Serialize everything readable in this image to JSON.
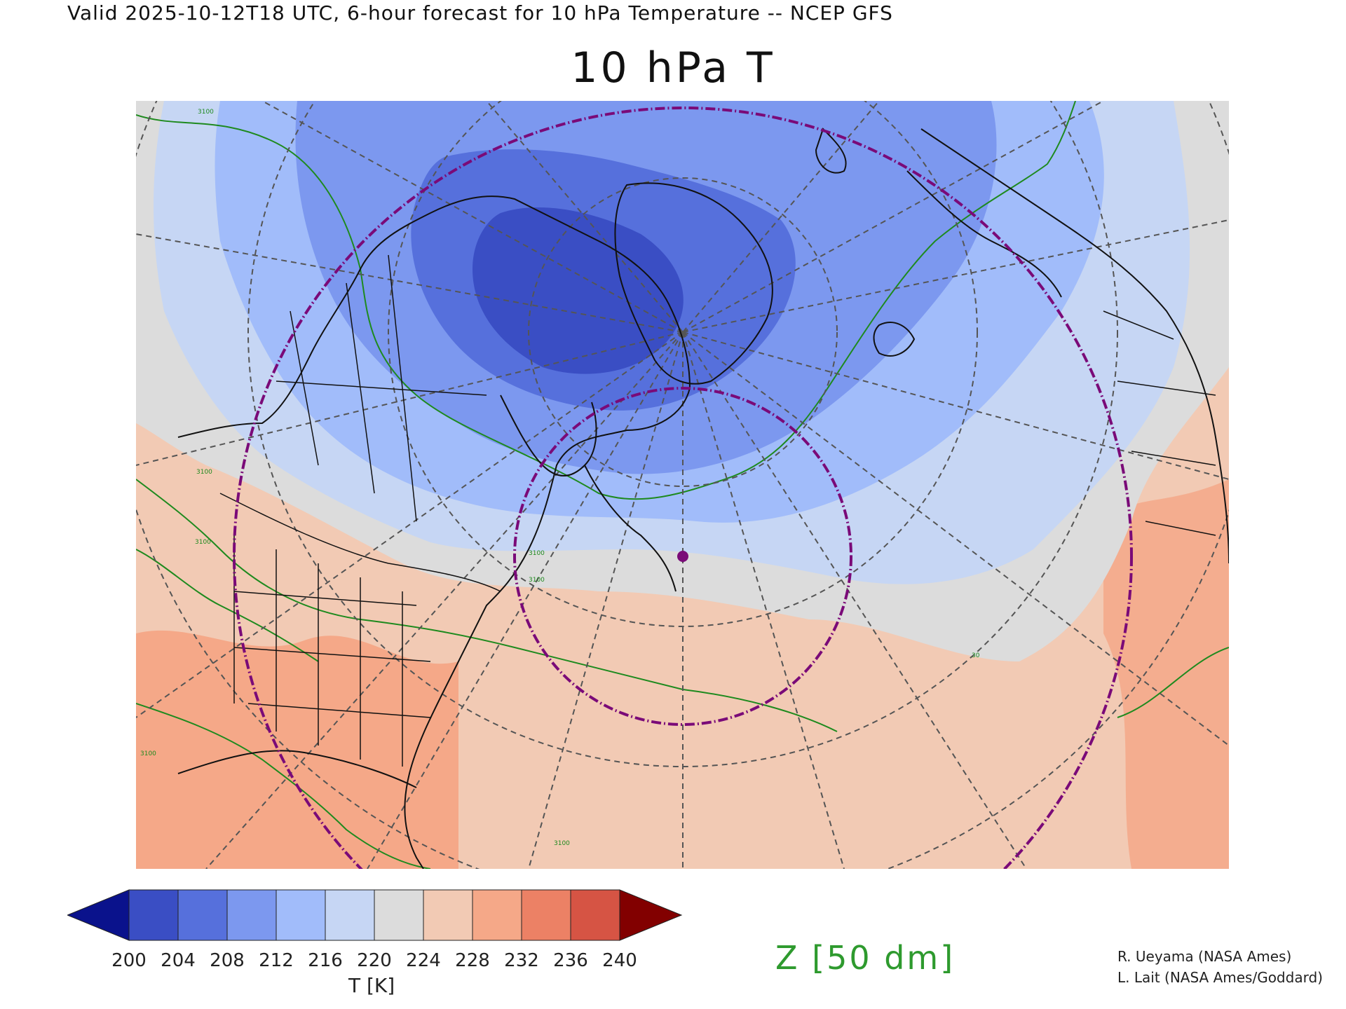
{
  "header": {
    "valid_line": "Valid 2025-10-12T18 UTC, 6-hour forecast for 10 hPa Temperature -- NCEP GFS"
  },
  "title": "10 hPa T",
  "map": {
    "projection": "north-polar-stereographic",
    "region": "North America, Atlantic, Europe",
    "shading_variable": "10 hPa temperature",
    "contour_variable": "geopotential height",
    "contour_labels": [
      "3100",
      "3100",
      "3100",
      "3100",
      "3100",
      "3100",
      "3100",
      "30"
    ],
    "contour_color": "#1e8a1e",
    "range_ring_color": "#7a0a78",
    "marker_color": "#7a0a78",
    "graticule_color": "#555555",
    "coastline_color": "#111111"
  },
  "colorbar": {
    "levels": [
      "200",
      "204",
      "208",
      "212",
      "216",
      "220",
      "224",
      "228",
      "232",
      "236",
      "240"
    ],
    "colors": [
      "#3a4ec4",
      "#5670dc",
      "#7c98ef",
      "#a1bcfa",
      "#c6d6f4",
      "#dcdcdc",
      "#f2cab4",
      "#f5a888",
      "#ec8165",
      "#d65444"
    ],
    "under_color": "#0a128c",
    "over_color": "#820000",
    "units": "T [K]"
  },
  "z_label": "Z [50 dm]",
  "credits": [
    "R. Ueyama (NASA Ames)",
    "L. Lait (NASA Ames/Goddard)"
  ]
}
